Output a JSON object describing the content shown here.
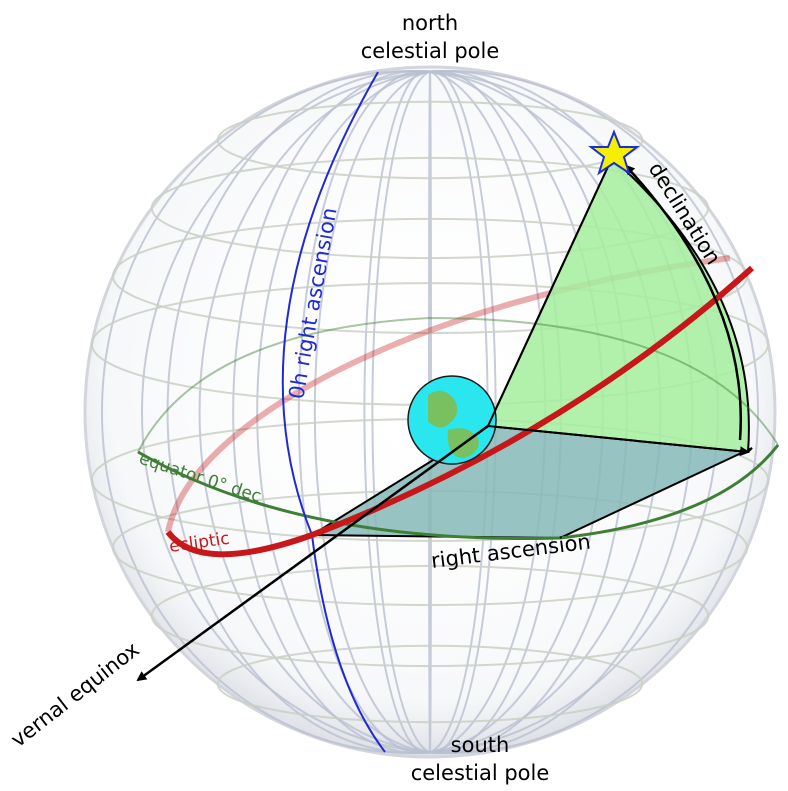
{
  "labels": {
    "north_line1": "north",
    "north_line2": "celestial pole",
    "south_line1": "south",
    "south_line2": "celestial pole",
    "zero_h_ra": "0h right ascension",
    "declination": "declination",
    "equator": "equator  0° dec",
    "ecliptic": "ecliptic",
    "right_ascension": "right ascension",
    "vernal_equinox": "vernal equinox"
  },
  "colors": {
    "grid_meridian": "#b9bfd0",
    "grid_parallel": "#c9d0c4",
    "outline": "#d2d5dc",
    "zero_h_meridian": "#1f2ad6",
    "equator": "#3f7f35",
    "ecliptic": "#c7171a",
    "declination_wedge": "#a4ef9e",
    "ra_wedge": "#86b9b8",
    "star": "#f5f000",
    "star_outline": "#1a2fd6",
    "earth_ocean": "#29e6ef",
    "earth_land": "#79c060"
  },
  "icons": {
    "star": "star-icon",
    "earth": "earth-icon"
  }
}
